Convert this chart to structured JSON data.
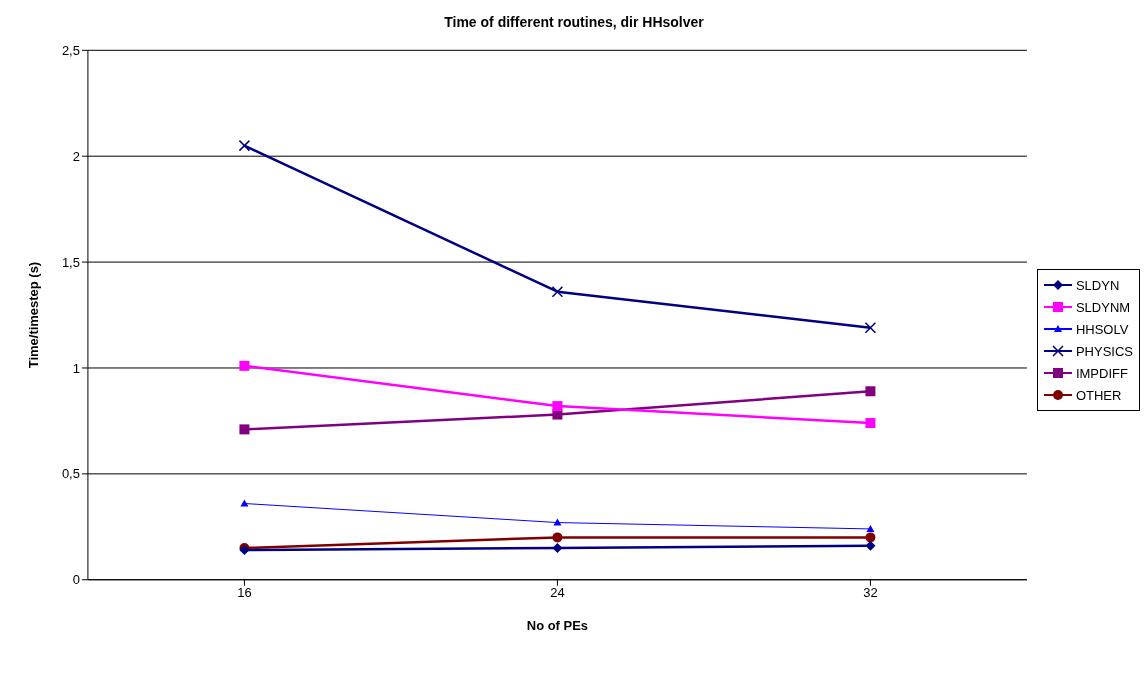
{
  "chart_data": {
    "type": "line",
    "title": "Time of different routines, dir HHsolver",
    "xlabel": "No of PEs",
    "ylabel": "Time/timestep (s)",
    "categories": [
      "16",
      "24",
      "32"
    ],
    "series": [
      {
        "name": "SLDYN",
        "color": "#000080",
        "marker": "diamond",
        "values": [
          0.14,
          0.15,
          0.16
        ]
      },
      {
        "name": "SLDYNM",
        "color": "#ff00ff",
        "marker": "square",
        "values": [
          1.01,
          0.82,
          0.74
        ]
      },
      {
        "name": "HHSOLV",
        "color": "#0000ff",
        "marker": "triangle",
        "values": [
          0.36,
          0.27,
          0.24
        ]
      },
      {
        "name": "PHYSICS",
        "color": "#000080",
        "marker": "cross",
        "values": [
          2.05,
          1.36,
          1.19
        ]
      },
      {
        "name": "IMPDIFF",
        "color": "#800080",
        "marker": "square",
        "values": [
          0.71,
          0.78,
          0.89
        ]
      },
      {
        "name": "OTHER",
        "color": "#800000",
        "marker": "circle",
        "values": [
          0.15,
          0.2,
          0.2
        ]
      }
    ],
    "ylim": [
      0,
      2.5
    ],
    "yticks": [
      0,
      {
        "value": 0.5,
        "label": "0,5"
      },
      1,
      {
        "value": 1.5,
        "label": "1,5"
      },
      2,
      {
        "value": 2.5,
        "label": "2,5"
      }
    ],
    "grid": "y",
    "legend": "right",
    "line_style": "solid"
  }
}
